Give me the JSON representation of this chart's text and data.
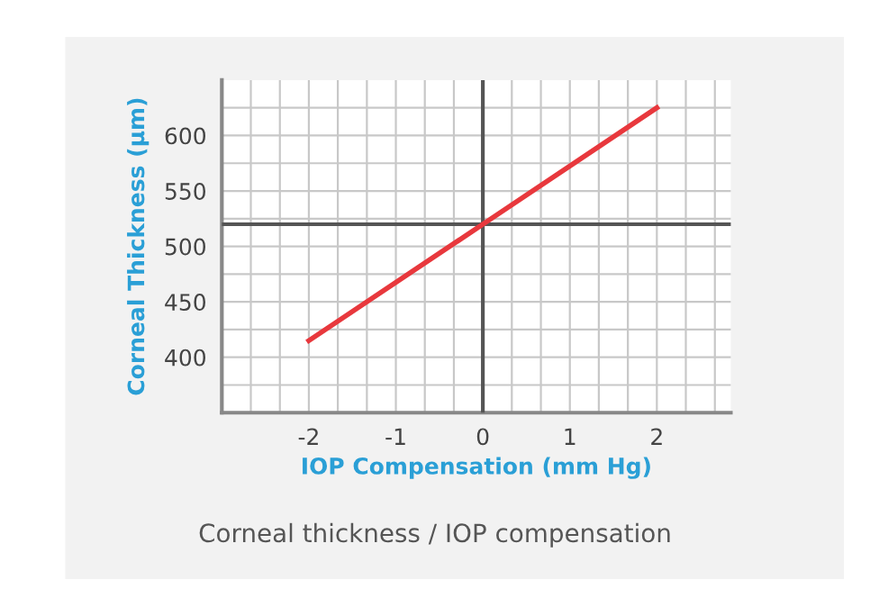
{
  "chart_data": {
    "type": "line",
    "xlabel": "IOP Compensation (mm Hg)",
    "ylabel": "Corneal Thickness (μm)",
    "annotations": [
      "Corneal thickness / IOP compensation"
    ],
    "x": [
      -2,
      0,
      2
    ],
    "series": [
      {
        "color": "#e8383d",
        "values": [
          415,
          520,
          625
        ]
      }
    ],
    "xlim": [
      -3,
      2.85
    ],
    "xticks": [
      {
        "value": -3,
        "label": null
      },
      {
        "value": -2.667,
        "label": null
      },
      {
        "value": -2.333,
        "label": null
      },
      -2,
      {
        "value": -1.667,
        "label": null
      },
      {
        "value": -1.333,
        "label": null
      },
      -1,
      {
        "value": -0.667,
        "label": null
      },
      {
        "value": -0.333,
        "label": null
      },
      0,
      {
        "value": 0.333,
        "label": null
      },
      {
        "value": 0.667,
        "label": null
      },
      1,
      {
        "value": 1.333,
        "label": null
      },
      {
        "value": 1.667,
        "label": null
      },
      2,
      {
        "value": 2.333,
        "label": null
      },
      {
        "value": 2.667,
        "label": null
      }
    ],
    "ylim": [
      350,
      650
    ],
    "yticks": [
      {
        "value": 375,
        "label": null
      },
      400,
      {
        "value": 425,
        "label": null
      },
      450,
      {
        "value": 475,
        "label": null
      },
      500,
      {
        "value": 525,
        "label": null
      },
      550,
      {
        "value": 575,
        "label": null
      },
      600,
      {
        "value": 625,
        "label": null
      }
    ],
    "ref_lines": [
      {
        "axis": "x",
        "value": 0,
        "color": "#555555"
      },
      {
        "axis": "y",
        "value": 520,
        "color": "#555555"
      }
    ],
    "grid": true,
    "marker": "none",
    "line_style": "solid"
  }
}
